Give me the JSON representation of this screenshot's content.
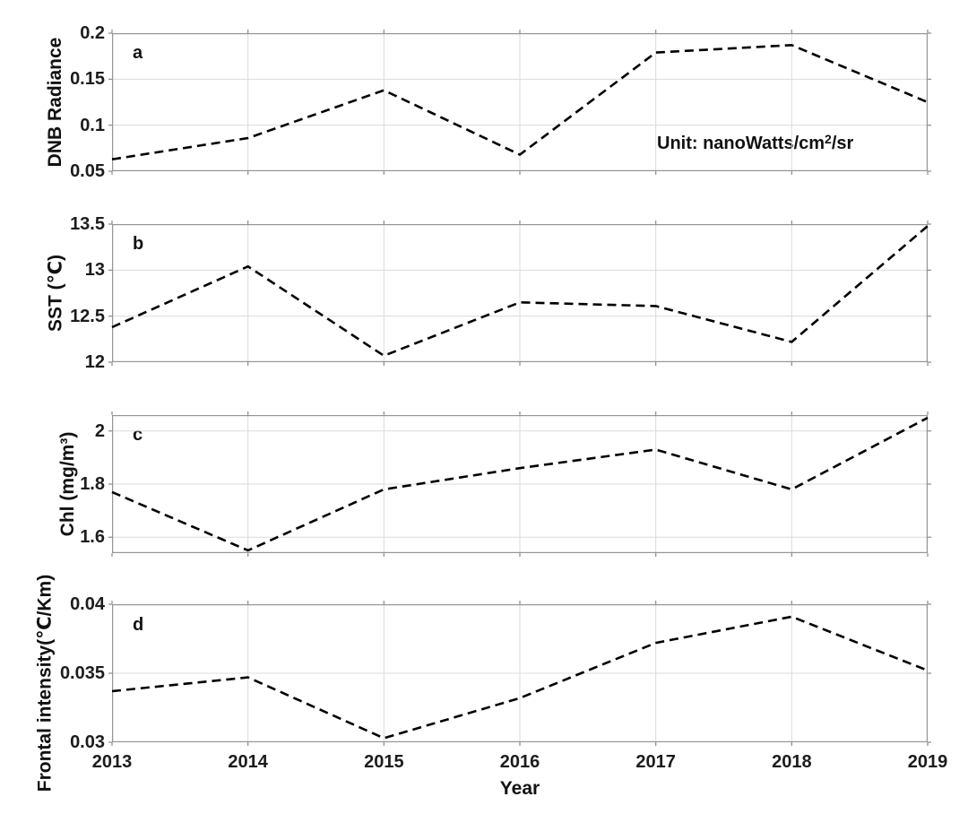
{
  "figure": {
    "xlabel": "Year",
    "x_ticks": [
      2013,
      2014,
      2015,
      2016,
      2017,
      2018,
      2019
    ],
    "x_tick_labels": [
      "2013",
      "2014",
      "2015",
      "2016",
      "2017",
      "2018",
      "2019"
    ],
    "annotation_pre": "Unit: nanoWatts/cm",
    "annotation_sup": "2",
    "annotation_post": "/sr"
  },
  "colors": {
    "line": "#000000",
    "grid": "#dbdbdb",
    "axis_border": "#949494",
    "tick_mark": "#8a8a8a",
    "text": "#1c1c1c"
  },
  "chart_data": [
    {
      "type": "line",
      "panel_letter": "a",
      "ylabel": "DNB Radiance",
      "x": [
        2013,
        2014,
        2015,
        2016,
        2017,
        2018,
        2019
      ],
      "values": [
        0.063,
        0.086,
        0.138,
        0.068,
        0.179,
        0.187,
        0.125
      ],
      "ylim": [
        0.05,
        0.2
      ],
      "ytick_values": [
        0.05,
        0.1,
        0.15,
        0.2
      ],
      "ytick_labels": [
        "0.05",
        "0.1",
        "0.15",
        "0.2"
      ],
      "grid_y": [
        0.1,
        0.15
      ],
      "line_style": "dashed",
      "annotation": "Unit: nanoWatts/cm²/sr",
      "grid": true,
      "legend": "none"
    },
    {
      "type": "line",
      "panel_letter": "b",
      "ylabel": "SST (℃)",
      "x": [
        2013,
        2014,
        2015,
        2016,
        2017,
        2018,
        2019
      ],
      "values": [
        12.38,
        13.04,
        12.07,
        12.65,
        12.61,
        12.22,
        13.48
      ],
      "ylim": [
        12,
        13.5
      ],
      "ytick_values": [
        12,
        12.5,
        13,
        13.5
      ],
      "ytick_labels": [
        "12",
        "12.5",
        "13",
        "13.5"
      ],
      "grid_y": [
        12.5,
        13
      ],
      "line_style": "dashed",
      "grid": true,
      "legend": "none"
    },
    {
      "type": "line",
      "panel_letter": "c",
      "ylabel": "Chl (mg/m³)",
      "x": [
        2013,
        2014,
        2015,
        2016,
        2017,
        2018,
        2019
      ],
      "values": [
        1.77,
        1.55,
        1.78,
        1.86,
        1.93,
        1.78,
        2.05
      ],
      "ylim": [
        1.54,
        2.06
      ],
      "ytick_values": [
        1.6,
        1.8,
        2
      ],
      "ytick_labels": [
        "1.6",
        "1.8",
        "2"
      ],
      "grid_y": [
        1.6,
        1.8,
        2
      ],
      "line_style": "dashed",
      "grid": true,
      "legend": "none"
    },
    {
      "type": "line",
      "panel_letter": "d",
      "ylabel": "Frontal intensity(℃/Km)",
      "x": [
        2013,
        2014,
        2015,
        2016,
        2017,
        2018,
        2019
      ],
      "values": [
        0.0337,
        0.0347,
        0.0303,
        0.0332,
        0.0372,
        0.0391,
        0.0352
      ],
      "ylim": [
        0.03,
        0.04
      ],
      "ytick_values": [
        0.03,
        0.035,
        0.04
      ],
      "ytick_labels": [
        "0.03",
        "0.035",
        "0.04"
      ],
      "grid_y": [
        0.035
      ],
      "line_style": "dashed",
      "grid": true,
      "legend": "none"
    }
  ]
}
